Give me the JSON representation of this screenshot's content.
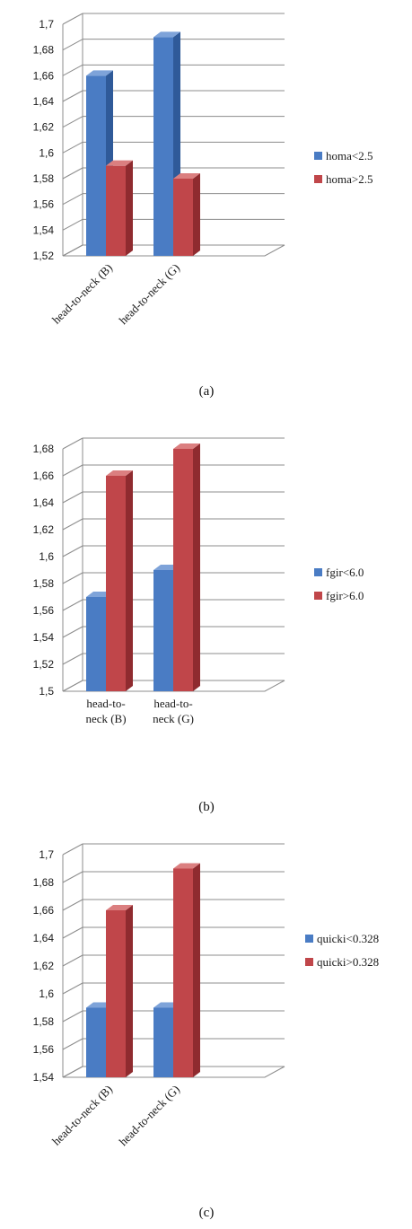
{
  "chart_data": [
    {
      "type": "bar",
      "caption": "(a)",
      "categories": [
        "head-to-neck (B)",
        "head-to-neck (G)"
      ],
      "category_label_style": "rotated",
      "series": [
        {
          "name": "homa<2.5",
          "values": [
            1.66,
            1.69
          ]
        },
        {
          "name": "homa>2.5",
          "values": [
            1.59,
            1.58
          ]
        }
      ],
      "ylim": [
        1.52,
        1.7
      ],
      "yticks": [
        1.52,
        1.54,
        1.56,
        1.58,
        1.6,
        1.62,
        1.64,
        1.66,
        1.68,
        1.7
      ],
      "ytick_labels": [
        "1,52",
        "1,54",
        "1,56",
        "1,58",
        "1,6",
        "1,62",
        "1,64",
        "1,66",
        "1,68",
        "1,7"
      ],
      "legend_position": "right",
      "grid": true
    },
    {
      "type": "bar",
      "caption": "(b)",
      "categories": [
        "head-to-neck (B)",
        "head-to-neck (G)"
      ],
      "category_label_lines": [
        [
          "head-to-",
          "neck (B)"
        ],
        [
          "head-to-",
          "neck (G)"
        ]
      ],
      "category_label_style": "wrapped",
      "series": [
        {
          "name": "fgir<6.0",
          "values": [
            1.57,
            1.59
          ]
        },
        {
          "name": "fgir>6.0",
          "values": [
            1.66,
            1.68
          ]
        }
      ],
      "ylim": [
        1.5,
        1.68
      ],
      "yticks": [
        1.5,
        1.52,
        1.54,
        1.56,
        1.58,
        1.6,
        1.62,
        1.64,
        1.66,
        1.68
      ],
      "ytick_labels": [
        "1,5",
        "1,52",
        "1,54",
        "1,56",
        "1,58",
        "1,6",
        "1,62",
        "1,64",
        "1,66",
        "1,68"
      ],
      "legend_position": "right",
      "grid": true
    },
    {
      "type": "bar",
      "caption": "(c)",
      "categories": [
        "head-to-neck (B)",
        "head-to-neck (G)"
      ],
      "category_label_style": "rotated",
      "series": [
        {
          "name": "quicki<0.328",
          "values": [
            1.59,
            1.59
          ]
        },
        {
          "name": "quicki>0.328",
          "values": [
            1.66,
            1.69
          ]
        }
      ],
      "ylim": [
        1.54,
        1.7
      ],
      "yticks": [
        1.54,
        1.56,
        1.58,
        1.6,
        1.62,
        1.64,
        1.66,
        1.68,
        1.7
      ],
      "ytick_labels": [
        "1,54",
        "1,56",
        "1,58",
        "1,6",
        "1,62",
        "1,64",
        "1,66",
        "1,68",
        "1,7"
      ],
      "legend_position": "right",
      "grid": true
    }
  ],
  "colors": {
    "series_blue": "#4a7cc4",
    "series_blue_top": "#7ea3d9",
    "series_blue_side": "#2f5a99",
    "series_red": "#c0464a",
    "series_red_top": "#db7f80",
    "series_red_side": "#8f2b2f",
    "grid": "#8c8c8c"
  }
}
